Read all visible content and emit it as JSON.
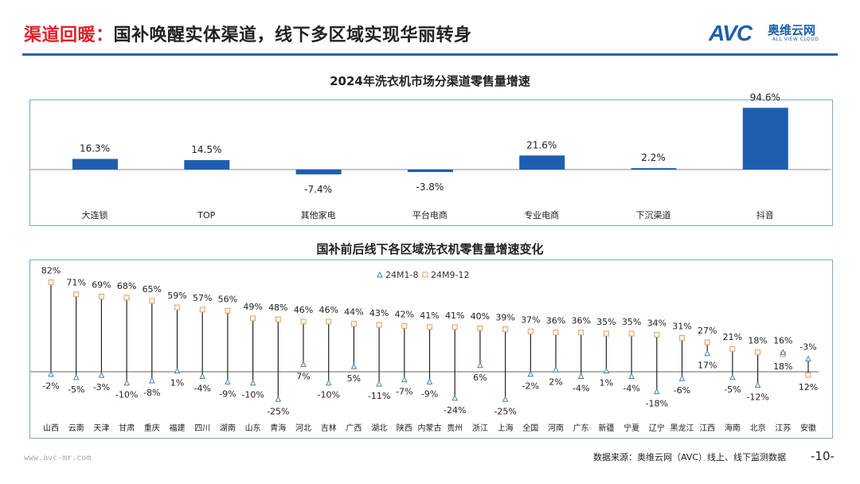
{
  "header": {
    "title_highlight": "渠道回暖：",
    "title_rest": "国补唤醒实体渠道，线下多区域实现华丽转身",
    "logo_text": "AVC",
    "logo_cn": "奥维云网",
    "logo_en": "ALL VIEW CLOUD"
  },
  "colors": {
    "accent": "#2a64a8",
    "highlight": "#e0202a",
    "bar": "#1d5fae",
    "square": "#d9a56a",
    "triangle": "#4a7fb0"
  },
  "chart_data": [
    {
      "type": "bar",
      "title": "2024年洗衣机市场分渠道零售量增速",
      "categories": [
        "大连锁",
        "TOP",
        "其他家电",
        "平台电商",
        "专业电商",
        "下沉渠道",
        "抖音"
      ],
      "values": [
        16.3,
        14.5,
        -7.4,
        -3.8,
        21.6,
        2.2,
        94.6
      ],
      "labels": [
        "16.3%",
        "14.5%",
        "-7.4%",
        "-3.8%",
        "21.6%",
        "2.2%",
        "94.6%"
      ],
      "unit": "%"
    },
    {
      "type": "scatter",
      "title": "国补前后线下各区域洗衣机零售量增速变化",
      "categories": [
        "山西",
        "云南",
        "天津",
        "甘肃",
        "重庆",
        "福建",
        "四川",
        "湖南",
        "山东",
        "青海",
        "河北",
        "吉林",
        "广西",
        "湖北",
        "陕西",
        "内蒙古",
        "贵州",
        "浙江",
        "上海",
        "全国",
        "河南",
        "广东",
        "新疆",
        "宁夏",
        "辽宁",
        "黑龙江",
        "江西",
        "海南",
        "北京",
        "江苏",
        "安徽"
      ],
      "series": [
        {
          "name": "24M1-8",
          "marker": "triangle",
          "values": [
            -2,
            -5,
            -3,
            -10,
            -8,
            1,
            -4,
            -9,
            -10,
            -25,
            7,
            -10,
            5,
            -11,
            -7,
            -9,
            -24,
            6,
            -25,
            -2,
            2,
            -4,
            1,
            -4,
            -18,
            -6,
            17,
            -5,
            -12,
            18,
            12
          ]
        },
        {
          "name": "24M9-12",
          "marker": "square",
          "values": [
            82,
            71,
            69,
            68,
            65,
            59,
            57,
            56,
            49,
            48,
            46,
            46,
            44,
            43,
            42,
            41,
            41,
            40,
            39,
            37,
            36,
            36,
            35,
            35,
            34,
            31,
            27,
            21,
            18,
            16,
            -3
          ]
        }
      ],
      "legend": "top-center",
      "unit": "%"
    }
  ],
  "footer": {
    "url": "www.avc-mr.com",
    "source": "数据来源：奥维云网（AVC）线上、线下监测数据",
    "page": "-10-"
  }
}
